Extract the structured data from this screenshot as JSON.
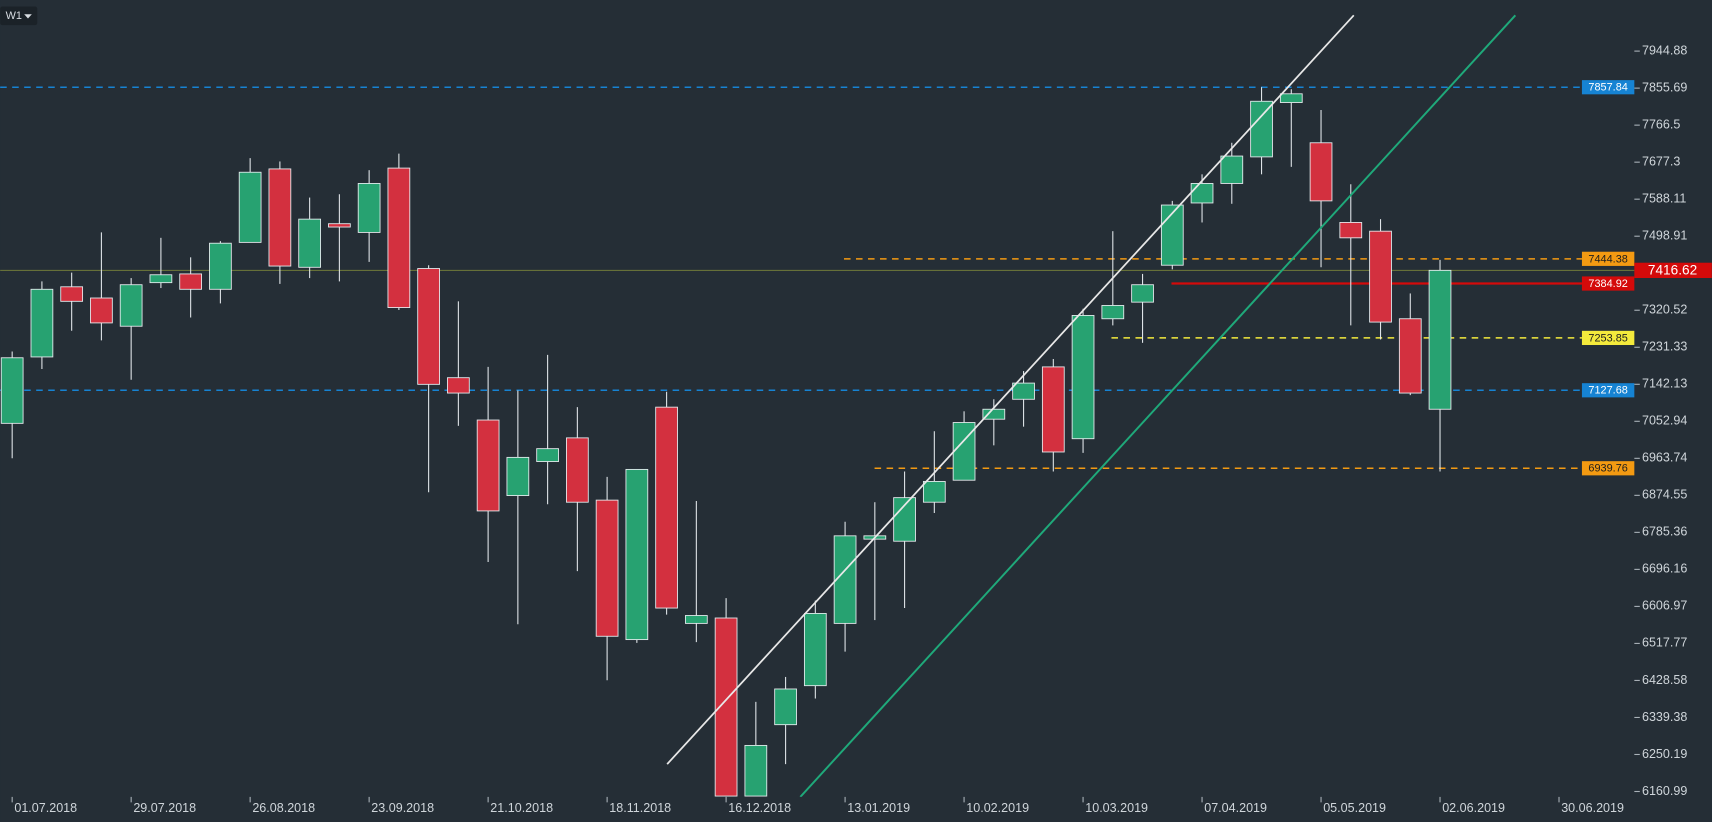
{
  "toolbar": {
    "timeframe": "W1"
  },
  "chart_data": {
    "type": "candlestick",
    "categories": [
      "01.07.2018",
      null,
      null,
      null,
      "29.07.2018",
      null,
      null,
      null,
      "26.08.2018",
      null,
      null,
      null,
      "23.09.2018",
      null,
      null,
      null,
      "21.10.2018",
      null,
      null,
      null,
      "18.11.2018",
      null,
      null,
      null,
      "16.12.2018",
      null,
      null,
      null,
      "13.01.2019",
      null,
      null,
      null,
      "10.02.2019",
      null,
      null,
      null,
      "10.03.2019",
      null,
      null,
      null,
      "07.04.2019",
      null,
      null,
      null,
      "05.05.2019",
      null,
      null,
      null,
      "02.06.2019",
      null,
      null,
      null,
      "30.06.2019"
    ],
    "open": [
      7048,
      7208,
      7377,
      7350,
      7282,
      7387,
      7408,
      7371,
      7484,
      7661,
      7424,
      7529,
      7508,
      7663,
      7421,
      7158,
      7056,
      6874,
      6956,
      7013,
      6863,
      6527,
      7087,
      6566,
      6579,
      6150,
      6322,
      6416,
      6566,
      6769,
      6764,
      6858,
      6911,
      7058,
      7106,
      7184,
      7011,
      7300,
      7340,
      7429,
      7579,
      7626,
      7690,
      7821,
      7724,
      7532,
      7511,
      7300,
      7082,
      null,
      null,
      null,
      null
    ],
    "high": [
      7221,
      7390,
      7411,
      7508,
      7398,
      7495,
      7448,
      7487,
      7687,
      7679,
      7592,
      7600,
      7658,
      7698,
      7429,
      7342,
      7184,
      7127,
      7213,
      7087,
      6919,
      6937,
      7124,
      6861,
      6627,
      6377,
      6437,
      6621,
      6811,
      6858,
      6932,
      7029,
      7077,
      7106,
      7174,
      7203,
      7324,
      7511,
      7408,
      7584,
      7648,
      7724,
      7858,
      7853,
      7803,
      7624,
      7540,
      7361,
      7442,
      null,
      null,
      null,
      null
    ],
    "low": [
      6964,
      7179,
      7271,
      7248,
      7153,
      7374,
      7303,
      7337,
      7484,
      7384,
      7398,
      7390,
      7437,
      7321,
      6882,
      7042,
      6714,
      6564,
      6853,
      6692,
      6429,
      6519,
      6587,
      6521,
      6150,
      6150,
      6227,
      6385,
      6498,
      6574,
      6603,
      6832,
      6911,
      6995,
      7040,
      6932,
      6977,
      7284,
      7242,
      7419,
      7532,
      7577,
      7648,
      7666,
      7424,
      7284,
      7250,
      7116,
      6932,
      null,
      null,
      null,
      null
    ],
    "close": [
      7206,
      7371,
      7342,
      7290,
      7382,
      7406,
      7371,
      7482,
      7653,
      7427,
      7540,
      7521,
      7626,
      7327,
      7142,
      7121,
      6837,
      6966,
      6987,
      6858,
      6535,
      6937,
      6603,
      6585,
      6150,
      6272,
      6408,
      6590,
      6777,
      6777,
      6869,
      6908,
      7050,
      7082,
      7145,
      6979,
      7308,
      7332,
      7382,
      7574,
      7626,
      7692,
      7824,
      7842,
      7584,
      7495,
      7292,
      7121,
      7416.62,
      null,
      null,
      null,
      null
    ],
    "up_color": "#27a271",
    "down_color": "#d3303f",
    "ylim": [
      6148,
      8068
    ],
    "yticks": [
      7944.88,
      7855.69,
      7766.5,
      7677.3,
      7588.11,
      7498.91,
      7320.52,
      7231.33,
      7142.13,
      7052.94,
      6963.74,
      6874.55,
      6785.36,
      6696.16,
      6606.97,
      6517.77,
      6428.58,
      6339.38,
      6250.19,
      6160.99
    ],
    "levels": [
      {
        "value": 7857.84,
        "color": "#1683d3",
        "style": "dashed"
      },
      {
        "value": 7444.38,
        "color": "#f39a12",
        "style": "dashed"
      },
      {
        "value": 7384.92,
        "color": "#d40a0a",
        "style": "solid"
      },
      {
        "value": 7253.85,
        "color": "#f4ea3c",
        "style": "dashed"
      },
      {
        "value": 7127.68,
        "color": "#1683d3",
        "style": "dashed"
      },
      {
        "value": 6939.76,
        "color": "#f39a12",
        "style": "dashed"
      }
    ],
    "last_price": 7416.62
  }
}
